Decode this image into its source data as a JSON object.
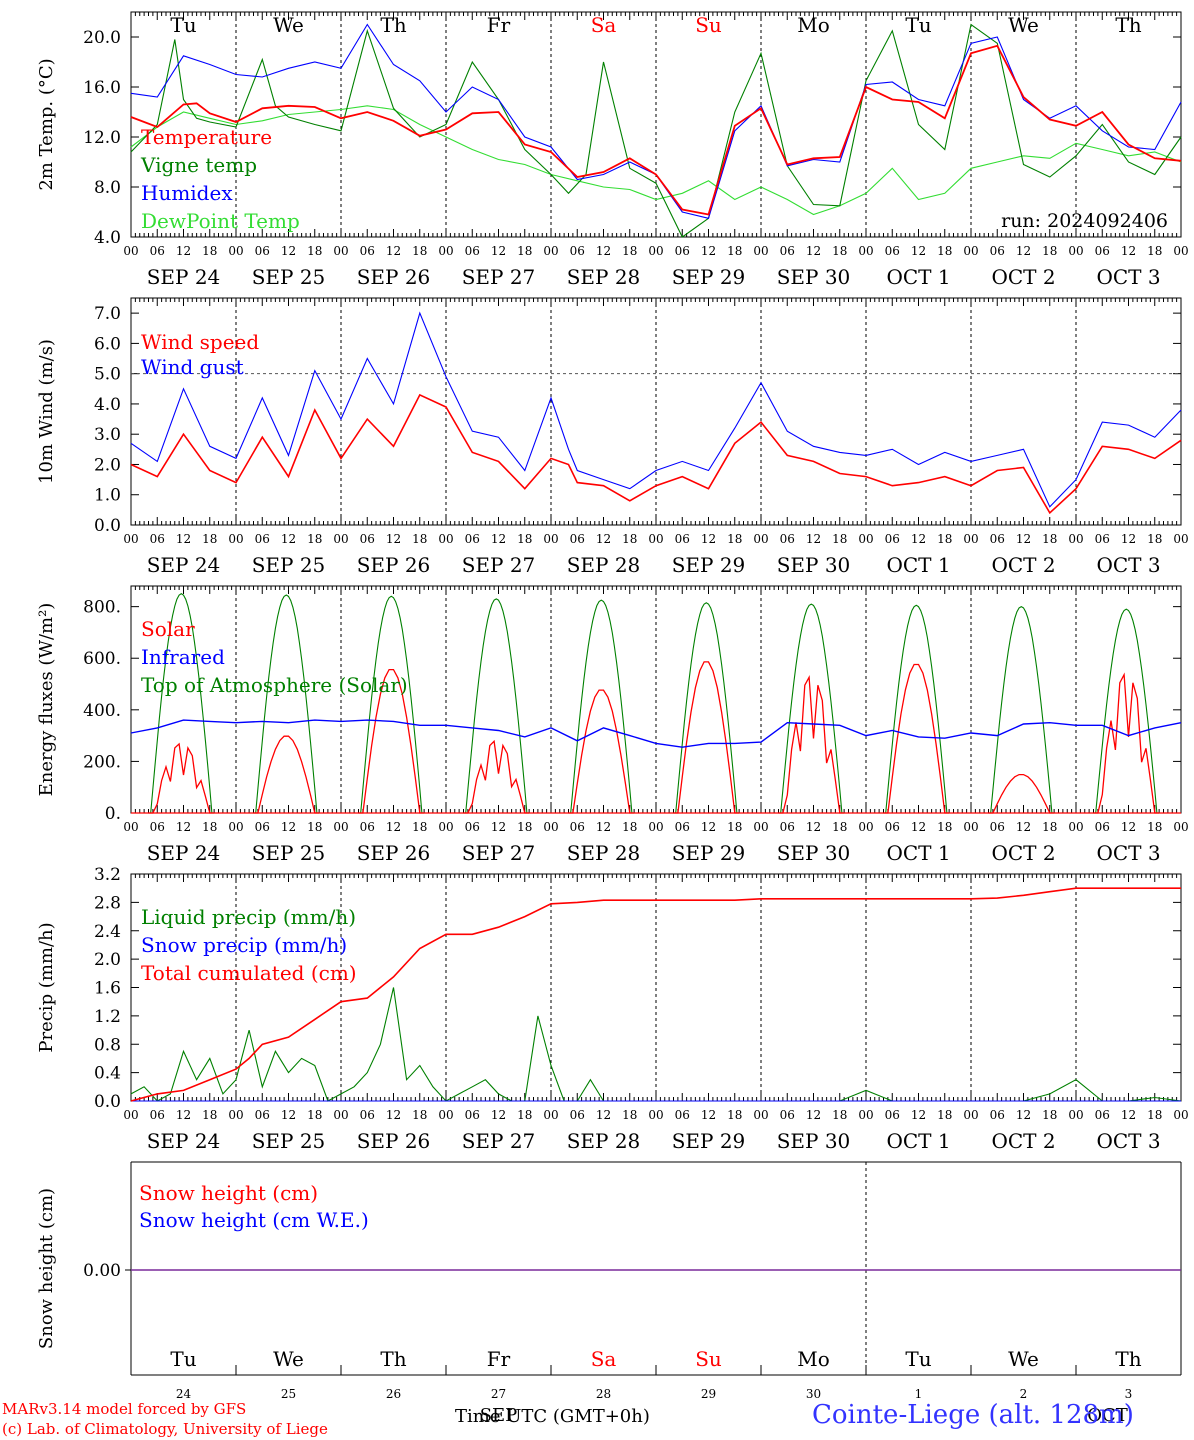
{
  "footer": {
    "model_line": "MARv3.14 model forced by GFS",
    "copyright_line": "(c) Lab. of Climatology, University of Liege",
    "time_axis_label": "Time UTC (GMT+0h)",
    "station": "Cointe-Liege (alt. 128m)"
  },
  "colors": {
    "red": "#ff0000",
    "green": "#008000",
    "lightgreen": "#33dd33",
    "blue": "#0000ff",
    "purple": "#7a2a9a",
    "weekend": "#ff0000"
  },
  "axis_common": {
    "hour_ticks": [
      "00",
      "06",
      "12",
      "18"
    ],
    "day_labels": [
      "SEP 24",
      "SEP 25",
      "SEP 26",
      "SEP 27",
      "SEP 28",
      "SEP 29",
      "SEP 30",
      "OCT 1",
      "OCT 2",
      "OCT 3"
    ],
    "weekday_labels": [
      "Tu",
      "We",
      "Th",
      "Fr",
      "Sa",
      "Su",
      "Mo",
      "Tu",
      "We",
      "Th"
    ],
    "weekend_indices": [
      4,
      5
    ],
    "day_numbers": [
      "24",
      "25",
      "26",
      "27",
      "28",
      "29",
      "30",
      "1",
      "2",
      "3"
    ],
    "sep_oct_marker": "SEP",
    "oct_marker": "OCT"
  },
  "chart_data": [
    {
      "type": "line",
      "id": "temp",
      "ylabel": "2m Temp. (°C)",
      "ylim": [
        4.0,
        22.0
      ],
      "yticks": [
        "4.0",
        "8.0",
        "12.0",
        "16.0",
        "20.0"
      ],
      "run_label": "run: 2024092406",
      "x_unit": "hours since SEP 24 00 UTC",
      "series": [
        {
          "name": "Temperature",
          "color": "red",
          "x": [
            0,
            6,
            12,
            15,
            18,
            24,
            30,
            36,
            42,
            48,
            54,
            60,
            66,
            72,
            78,
            84,
            90,
            96,
            102,
            108,
            114,
            120,
            126,
            132,
            138,
            144,
            150,
            156,
            162,
            168,
            174,
            180,
            186,
            192,
            198,
            204,
            210,
            216,
            222,
            228,
            234,
            240
          ],
          "y": [
            13.6,
            12.8,
            14.6,
            14.7,
            13.9,
            13.2,
            14.3,
            14.5,
            14.4,
            13.5,
            14.0,
            13.3,
            12.1,
            12.6,
            13.9,
            14.0,
            11.4,
            10.8,
            8.8,
            9.2,
            10.3,
            9.0,
            6.2,
            5.8,
            12.9,
            14.3,
            9.8,
            10.3,
            10.4,
            16.0,
            15.0,
            14.8,
            13.5,
            18.7,
            19.3,
            15.2,
            13.4,
            12.9,
            14.0,
            11.4,
            10.3,
            10.1
          ]
        },
        {
          "name": "Vigne temp",
          "color": "green",
          "x": [
            0,
            6,
            10,
            12,
            15,
            18,
            24,
            30,
            33,
            36,
            42,
            48,
            54,
            60,
            66,
            72,
            78,
            84,
            90,
            96,
            100,
            104,
            108,
            114,
            120,
            126,
            132,
            138,
            144,
            150,
            156,
            162,
            168,
            174,
            180,
            186,
            192,
            198,
            204,
            210,
            216,
            222,
            228,
            234,
            240
          ],
          "y": [
            10.8,
            13.0,
            19.8,
            15.0,
            13.5,
            13.2,
            12.8,
            18.2,
            14.5,
            13.6,
            13.0,
            12.5,
            20.5,
            14.3,
            12.0,
            13.0,
            18.0,
            15.0,
            11.0,
            9.0,
            7.5,
            9.0,
            18.0,
            9.5,
            8.3,
            4.0,
            5.5,
            14.0,
            18.7,
            9.7,
            6.6,
            6.5,
            16.5,
            20.5,
            13.0,
            11.0,
            21.0,
            19.5,
            9.8,
            8.8,
            10.5,
            13.0,
            10.0,
            9.0,
            12.0
          ]
        },
        {
          "name": "Humidex",
          "color": "blue",
          "x": [
            0,
            6,
            12,
            18,
            24,
            30,
            36,
            42,
            48,
            54,
            60,
            66,
            72,
            78,
            84,
            90,
            96,
            102,
            108,
            114,
            120,
            126,
            132,
            138,
            144,
            150,
            156,
            162,
            168,
            174,
            180,
            186,
            192,
            198,
            204,
            210,
            216,
            222,
            228,
            234,
            240
          ],
          "y": [
            15.5,
            15.2,
            18.5,
            17.8,
            17.0,
            16.8,
            17.5,
            18.0,
            17.5,
            21.0,
            17.8,
            16.5,
            14.0,
            16.0,
            15.0,
            12.0,
            11.2,
            8.6,
            9.0,
            10.0,
            9.0,
            6.0,
            5.5,
            12.5,
            14.5,
            9.7,
            10.2,
            10.0,
            16.2,
            16.4,
            15.0,
            14.5,
            19.5,
            20.0,
            15.0,
            13.5,
            14.5,
            12.5,
            11.2,
            11.0,
            14.8
          ]
        },
        {
          "name": "DewPoint Temp",
          "color": "lightgreen",
          "x": [
            0,
            6,
            12,
            18,
            24,
            30,
            36,
            42,
            48,
            54,
            60,
            66,
            72,
            78,
            84,
            90,
            96,
            102,
            108,
            114,
            120,
            126,
            132,
            138,
            144,
            150,
            156,
            162,
            168,
            174,
            180,
            186,
            192,
            198,
            204,
            210,
            216,
            222,
            228,
            234,
            240
          ],
          "y": [
            11.2,
            12.8,
            14.0,
            13.5,
            13.0,
            13.3,
            13.8,
            14.0,
            14.2,
            14.5,
            14.2,
            13.0,
            12.0,
            11.0,
            10.2,
            9.8,
            9.0,
            8.5,
            8.0,
            7.8,
            7.0,
            7.5,
            8.5,
            7.0,
            8.0,
            7.0,
            5.8,
            6.5,
            7.5,
            9.5,
            7.0,
            7.5,
            9.5,
            10.0,
            10.5,
            10.3,
            11.5,
            11.0,
            10.5,
            10.8,
            10.0
          ]
        }
      ]
    },
    {
      "type": "line",
      "id": "wind",
      "ylabel": "10m Wind (m/s)",
      "ylim": [
        0.0,
        7.5
      ],
      "yticks": [
        "0.0",
        "1.0",
        "2.0",
        "3.0",
        "4.0",
        "5.0",
        "6.0",
        "7.0"
      ],
      "reference_line": 5.0,
      "x_unit": "hours since SEP 24 00 UTC",
      "series": [
        {
          "name": "Wind speed",
          "color": "red",
          "x": [
            0,
            6,
            12,
            18,
            24,
            30,
            36,
            42,
            48,
            54,
            60,
            66,
            72,
            78,
            84,
            90,
            96,
            100,
            102,
            108,
            114,
            120,
            126,
            132,
            138,
            144,
            150,
            156,
            162,
            168,
            174,
            180,
            186,
            192,
            198,
            204,
            210,
            216,
            222,
            228,
            234,
            240
          ],
          "y": [
            2.0,
            1.6,
            3.0,
            1.8,
            1.4,
            2.9,
            1.6,
            3.8,
            2.2,
            3.5,
            2.6,
            4.3,
            3.9,
            2.4,
            2.1,
            1.2,
            2.2,
            2.0,
            1.4,
            1.3,
            0.8,
            1.3,
            1.6,
            1.2,
            2.7,
            3.4,
            2.3,
            2.1,
            1.7,
            1.6,
            1.3,
            1.4,
            1.6,
            1.3,
            1.8,
            1.9,
            0.4,
            1.2,
            2.6,
            2.5,
            2.2,
            2.8
          ]
        },
        {
          "name": "Wind gust",
          "color": "blue",
          "x": [
            0,
            6,
            12,
            18,
            24,
            30,
            36,
            42,
            48,
            54,
            60,
            66,
            72,
            78,
            84,
            90,
            96,
            100,
            102,
            108,
            114,
            120,
            126,
            132,
            138,
            144,
            150,
            156,
            162,
            168,
            174,
            180,
            186,
            192,
            198,
            204,
            210,
            216,
            222,
            228,
            234,
            240
          ],
          "y": [
            2.7,
            2.1,
            4.5,
            2.6,
            2.2,
            4.2,
            2.3,
            5.1,
            3.5,
            5.5,
            4.0,
            7.0,
            4.9,
            3.1,
            2.9,
            1.8,
            4.2,
            2.5,
            1.8,
            1.5,
            1.2,
            1.8,
            2.1,
            1.8,
            3.2,
            4.7,
            3.1,
            2.6,
            2.4,
            2.3,
            2.5,
            2.0,
            2.4,
            2.1,
            2.3,
            2.5,
            0.6,
            1.5,
            3.4,
            3.3,
            2.9,
            3.8
          ]
        }
      ]
    },
    {
      "type": "line",
      "id": "energy",
      "ylabel": "Energy fluxes (W/m²)",
      "ylim": [
        0,
        880
      ],
      "yticks": [
        "0.",
        "200.",
        "400.",
        "600.",
        "800."
      ],
      "x_unit": "hours since SEP 24 00 UTC",
      "toa_peaks": [
        850,
        845,
        840,
        830,
        825,
        815,
        810,
        805,
        800,
        790
      ],
      "solar_peaks": [
        270,
        300,
        560,
        280,
        480,
        590,
        530,
        580,
        150,
        540
      ],
      "series_names": {
        "solar": "Solar",
        "ir": "Infrared",
        "toa": "Top of Atmosphere (Solar)"
      },
      "infrared": {
        "x": [
          0,
          6,
          12,
          18,
          24,
          30,
          36,
          42,
          48,
          54,
          60,
          66,
          72,
          78,
          84,
          90,
          96,
          102,
          108,
          114,
          120,
          126,
          132,
          138,
          144,
          150,
          156,
          162,
          168,
          174,
          180,
          186,
          192,
          198,
          204,
          210,
          216,
          222,
          228,
          234,
          240
        ],
        "y": [
          310,
          330,
          360,
          355,
          350,
          355,
          350,
          360,
          355,
          360,
          355,
          340,
          340,
          330,
          320,
          295,
          330,
          280,
          330,
          300,
          270,
          255,
          270,
          270,
          275,
          350,
          345,
          340,
          300,
          320,
          295,
          290,
          310,
          300,
          345,
          350,
          340,
          340,
          300,
          330,
          350
        ]
      }
    },
    {
      "type": "line",
      "id": "precip",
      "ylabel": "Precip (mm/h)",
      "ylim": [
        0.0,
        3.2
      ],
      "yticks": [
        "0.0",
        "0.4",
        "0.8",
        "1.2",
        "1.6",
        "2.0",
        "2.4",
        "2.8",
        "3.2"
      ],
      "x_unit": "hours since SEP 24 00 UTC",
      "series": [
        {
          "name": "Liquid precip (mm/h)",
          "color": "green",
          "x": [
            0,
            3,
            6,
            9,
            12,
            15,
            18,
            21,
            24,
            27,
            30,
            33,
            36,
            39,
            42,
            45,
            48,
            51,
            54,
            57,
            60,
            63,
            66,
            69,
            72,
            75,
            78,
            81,
            84,
            87,
            90,
            93,
            96,
            99,
            102,
            105,
            108,
            111,
            114,
            117,
            120,
            126,
            132,
            138,
            144,
            150,
            156,
            162,
            168,
            174,
            180,
            186,
            192,
            198,
            204,
            210,
            216,
            222,
            228,
            234,
            240
          ],
          "y": [
            0.1,
            0.2,
            0.0,
            0.1,
            0.7,
            0.3,
            0.6,
            0.1,
            0.3,
            1.0,
            0.2,
            0.7,
            0.4,
            0.6,
            0.5,
            0.0,
            0.1,
            0.2,
            0.4,
            0.8,
            1.6,
            0.3,
            0.5,
            0.2,
            0.0,
            0.1,
            0.2,
            0.3,
            0.1,
            0.0,
            0.0,
            1.2,
            0.5,
            0.0,
            0.0,
            0.3,
            0.0,
            0.0,
            0.0,
            0.0,
            0.0,
            0.0,
            0.0,
            0.0,
            0.0,
            0.0,
            0.0,
            0.0,
            0.15,
            0.0,
            0.0,
            0.0,
            0.0,
            0.0,
            0.0,
            0.1,
            0.3,
            0.0,
            0.0,
            0.05,
            0.0
          ]
        },
        {
          "name": "Snow precip (mm/h)",
          "color": "blue",
          "x": [
            0,
            240
          ],
          "y": [
            0.0,
            0.0
          ]
        },
        {
          "name": "Total cumulated (cm)",
          "color": "red",
          "x": [
            0,
            6,
            12,
            18,
            24,
            27,
            30,
            36,
            42,
            48,
            54,
            60,
            66,
            72,
            78,
            84,
            90,
            96,
            102,
            108,
            114,
            120,
            126,
            132,
            138,
            144,
            156,
            168,
            180,
            192,
            198,
            204,
            210,
            216,
            222,
            228,
            234,
            240
          ],
          "y": [
            0.0,
            0.1,
            0.15,
            0.3,
            0.45,
            0.6,
            0.8,
            0.9,
            1.15,
            1.4,
            1.45,
            1.75,
            2.15,
            2.35,
            2.35,
            2.45,
            2.6,
            2.78,
            2.8,
            2.83,
            2.83,
            2.83,
            2.83,
            2.83,
            2.83,
            2.85,
            2.85,
            2.85,
            2.85,
            2.85,
            2.86,
            2.9,
            2.95,
            3.0,
            3.0,
            3.0,
            3.0,
            3.0
          ]
        }
      ]
    },
    {
      "type": "line",
      "id": "snow",
      "ylabel": "Snow height (cm)",
      "ytick": "0.00",
      "x_unit": "hours since SEP 24 00 UTC",
      "series": [
        {
          "name": "Snow height (cm)",
          "color": "red",
          "x": [
            0,
            240
          ],
          "y": [
            0,
            0
          ]
        },
        {
          "name": "Snow height (cm W.E.)",
          "color": "blue",
          "x": [
            0,
            240
          ],
          "y": [
            0,
            0
          ]
        }
      ]
    }
  ]
}
